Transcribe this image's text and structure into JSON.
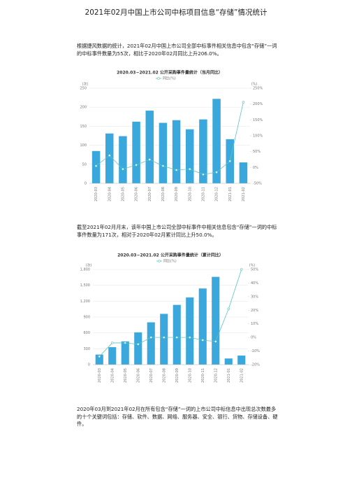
{
  "header": {
    "title": "2021年02月中国上市公司中标项目信息“存储”情况统计"
  },
  "paragraphs": [
    "根据捷风数据的统计，2021年02月中国上市公司全部中标事件相关信息中包含“存储”一词的中标事件数量为55次，相比于2020年02月同比上升206.0%。",
    "截至2021年02月月末，该年中国上市公司全部中标事件中相关信息包含“存储”一词的中标事件数量为171次，相对于2020年02月累计同比上升50.0%。",
    "2020年03月到2021年02月在所有包含“存储”一词的上市公司中标信息中出现总次数最多的十个关键词包括：存储、软件、数据、网络、服务器、安全、银行、货物、存储设备、硬件。"
  ],
  "chart_data": [
    {
      "type": "bar-line",
      "title": "2020.03~2021.02 公开采购事件量统计（当月同比）",
      "y_unit": "(次)",
      "y2_unit": "(%)",
      "categories": [
        "2020-03",
        "2020-04",
        "2020-05",
        "2020-06",
        "2020-07",
        "2020-08",
        "2020-09",
        "2020-10",
        "2020-11",
        "2020-12",
        "2021-01",
        "2021-02"
      ],
      "series": [
        {
          "type": "bar",
          "color": "#3aa8dc",
          "values": [
            85,
            131,
            124,
            162,
            191,
            159,
            166,
            142,
            168,
            222,
            116,
            55
          ]
        },
        {
          "type": "line",
          "name": "同比(%)",
          "axis": "y2",
          "color": "#5bc4c0",
          "values": [
            5,
            38,
            -5,
            8,
            25,
            5,
            -8,
            -5,
            -22,
            -15,
            20,
            206
          ]
        }
      ],
      "ylim": [
        0,
        250
      ],
      "yticks": [
        0,
        50,
        100,
        150,
        200,
        250
      ],
      "y2lim": [
        -50,
        250
      ],
      "y2ticks": [
        {
          "value": -50,
          "label": "-50%"
        },
        {
          "value": 0,
          "label": "0%"
        },
        {
          "value": 50,
          "label": "50%"
        },
        {
          "value": 100,
          "label": "100%"
        },
        {
          "value": 150,
          "label": "150%"
        },
        {
          "value": 200,
          "label": "200%"
        },
        {
          "value": 250,
          "label": "250%"
        }
      ],
      "grid": true
    },
    {
      "type": "bar-line",
      "title": "2020.03~2021.02 公开采购事件量统计（累计同比）",
      "y_unit": "(次)",
      "y2_unit": "(%)",
      "categories": [
        "2020-03",
        "2020-04",
        "2020-05",
        "2020-06",
        "2020-07",
        "2020-08",
        "2020-09",
        "2020-10",
        "2020-11",
        "2020-12",
        "2021-01",
        "2021-02"
      ],
      "series": [
        {
          "type": "bar",
          "color": "#3aa8dc",
          "values": [
            190,
            330,
            440,
            610,
            800,
            960,
            1130,
            1270,
            1440,
            1660,
            116,
            171
          ]
        },
        {
          "type": "line",
          "name": "同比(%)",
          "axis": "y2",
          "color": "#5bc4c0",
          "values": [
            -14,
            -4,
            -4,
            -5,
            0,
            0,
            0,
            0,
            -2,
            -3,
            21,
            50
          ]
        }
      ],
      "ylim": [
        0,
        1800
      ],
      "yticks": [
        0,
        300,
        600,
        900,
        {
          "value": 1200,
          "label": "1,200"
        },
        {
          "value": 1500,
          "label": "1,500"
        },
        {
          "value": 1800,
          "label": "1,800"
        }
      ],
      "y2lim": [
        -20,
        50
      ],
      "y2ticks": [
        {
          "value": -20,
          "label": "-20%"
        },
        {
          "value": -10,
          "label": "-10%"
        },
        {
          "value": 0,
          "label": "0%"
        },
        {
          "value": 10,
          "label": "10%"
        },
        {
          "value": 20,
          "label": "20%"
        },
        {
          "value": 30,
          "label": "30%"
        },
        {
          "value": 40,
          "label": "40%"
        },
        {
          "value": 50,
          "label": "50%"
        }
      ],
      "grid": true
    }
  ]
}
